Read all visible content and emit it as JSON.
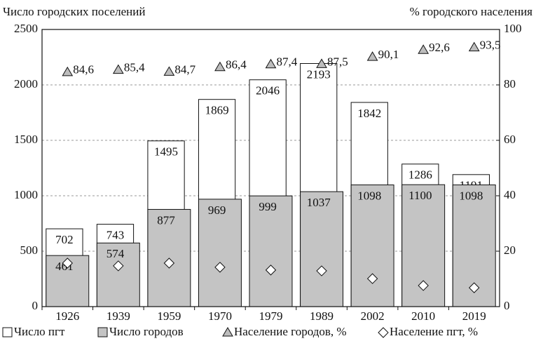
{
  "chart_data": {
    "type": "bar",
    "y_label": "Число городских поселений",
    "y2_label": "% городского населения",
    "categories": [
      "1926",
      "1939",
      "1959",
      "1970",
      "1979",
      "1989",
      "2002",
      "2010",
      "2019"
    ],
    "series": [
      {
        "name": "Число пгт",
        "color": "#ffffff",
        "values": [
          702,
          743,
          1495,
          1869,
          2046,
          2193,
          1842,
          1286,
          1191
        ]
      },
      {
        "name": "Число городов",
        "color": "#c4c4c4",
        "values": [
          461,
          574,
          877,
          969,
          999,
          1037,
          1098,
          1100,
          1098
        ]
      },
      {
        "name": "Население городов, %",
        "color": "#bdbdbd",
        "marker": "triangle",
        "axis": "y2",
        "values": [
          84.6,
          85.4,
          84.7,
          86.4,
          87.4,
          87.5,
          90.1,
          92.6,
          93.5
        ],
        "value_labels": [
          "84,6",
          "85,4",
          "84,7",
          "86,4",
          "87,4",
          "87,5",
          "90,1",
          "92,6",
          "93,5"
        ]
      },
      {
        "name": "Население пгт, %",
        "color": "#ffffff",
        "marker": "diamond",
        "axis": "y2",
        "values": [
          15.7,
          14.7,
          15.7,
          14.2,
          13.2,
          12.9,
          10.1,
          7.6,
          6.8
        ]
      }
    ],
    "ylim": [
      0,
      2500
    ],
    "yticks": [
      0,
      500,
      1000,
      1500,
      2000,
      2500
    ],
    "y2lim": [
      0,
      100
    ],
    "y2ticks": [
      0,
      20,
      40,
      60,
      80,
      100
    ],
    "grid": true
  }
}
